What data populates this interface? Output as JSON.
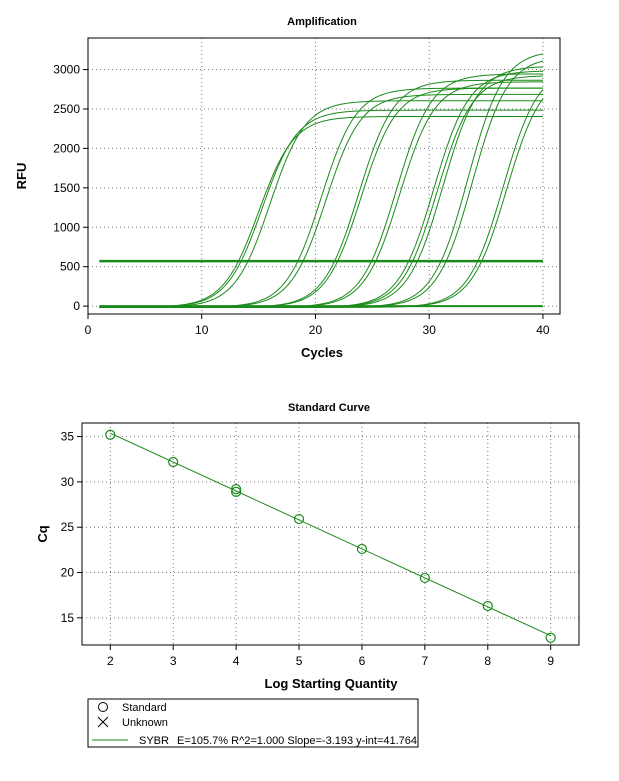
{
  "chart_data": [
    {
      "type": "line",
      "title": "Amplification",
      "xlabel": "Cycles",
      "ylabel": "RFU",
      "xlim": [
        0,
        41.5
      ],
      "ylim": [
        -100,
        3400
      ],
      "xticks": [
        0,
        10,
        20,
        30,
        40
      ],
      "yticks": [
        0,
        500,
        1000,
        1500,
        2000,
        2500,
        3000
      ],
      "grid": true,
      "line_color": "#1a8a1a",
      "threshold": 570,
      "threshold_x_range": [
        1,
        40
      ],
      "cycles_range": [
        1,
        40
      ],
      "curves": [
        {
          "midpoint": 15.0,
          "plateau": 2420
        },
        {
          "midpoint": 15.3,
          "plateau": 2500
        },
        {
          "midpoint": 16.0,
          "plateau": 2620
        },
        {
          "midpoint": 20.5,
          "plateau": 2780
        },
        {
          "midpoint": 20.9,
          "plateau": 2700
        },
        {
          "midpoint": 23.8,
          "plateau": 2880
        },
        {
          "midpoint": 24.0,
          "plateau": 2780
        },
        {
          "midpoint": 27.1,
          "plateau": 2960
        },
        {
          "midpoint": 27.4,
          "plateau": 2860
        },
        {
          "midpoint": 30.4,
          "plateau": 3000
        },
        {
          "midpoint": 30.7,
          "plateau": 2940
        },
        {
          "midpoint": 31.2,
          "plateau": 3060
        },
        {
          "midpoint": 33.4,
          "plateau": 3260
        },
        {
          "midpoint": 33.8,
          "plateau": 3180
        },
        {
          "midpoint": 36.5,
          "plateau": 3050
        },
        {
          "midpoint": 36.8,
          "plateau": 2980
        }
      ]
    },
    {
      "type": "scatter",
      "title": "Standard Curve",
      "xlabel": "Log Starting Quantity",
      "ylabel": "Cq",
      "xlim": [
        1.55,
        9.45
      ],
      "ylim": [
        12,
        36.5
      ],
      "xticks": [
        2,
        3,
        4,
        5,
        6,
        7,
        8,
        9
      ],
      "yticks": [
        15,
        20,
        25,
        30,
        35
      ],
      "grid": true,
      "line_color": "#1a8a1a",
      "points": [
        {
          "x": 2,
          "y": 35.2
        },
        {
          "x": 3,
          "y": 32.2
        },
        {
          "x": 4,
          "y": 29.2
        },
        {
          "x": 4,
          "y": 28.9
        },
        {
          "x": 5,
          "y": 25.9
        },
        {
          "x": 6,
          "y": 22.6
        },
        {
          "x": 7,
          "y": 19.4
        },
        {
          "x": 8,
          "y": 16.3
        },
        {
          "x": 9,
          "y": 12.8
        }
      ],
      "fit": {
        "slope": -3.193,
        "intercept": 41.764,
        "x_range": [
          2,
          9
        ]
      },
      "legend": {
        "placement": "bottom-left",
        "standard": "Standard",
        "unknown": "Unknown",
        "series_name": "SYBR",
        "stats": "E=105.7% R^2=1.000 Slope=-3.193 y-int=41.764"
      }
    }
  ]
}
